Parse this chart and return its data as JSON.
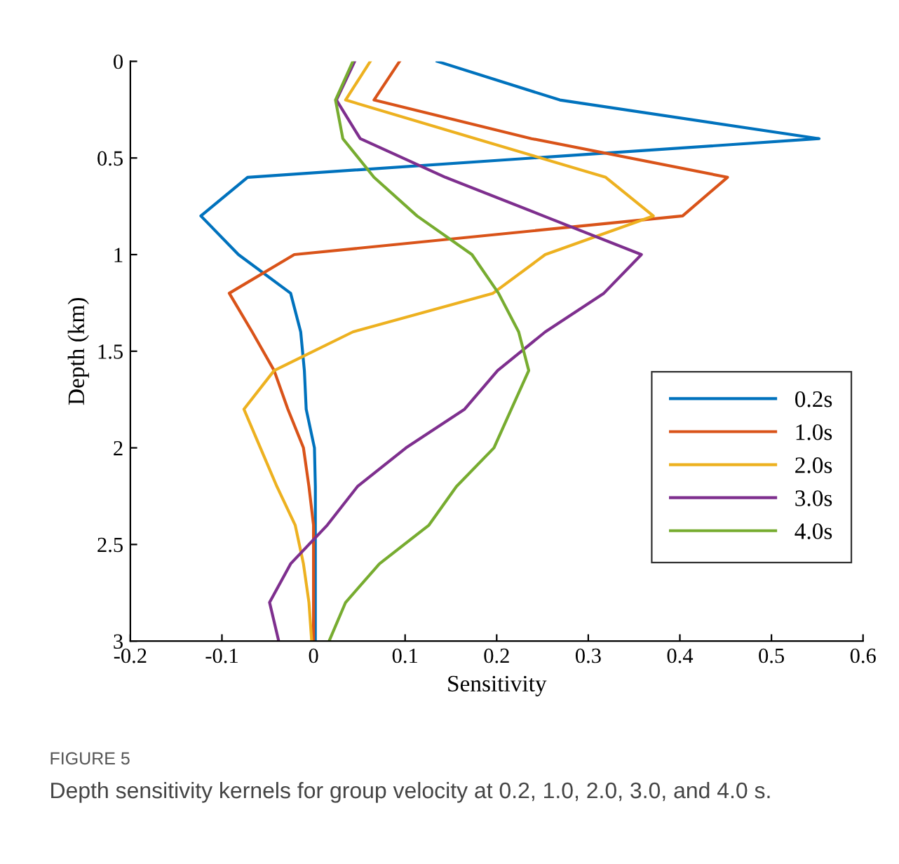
{
  "chart_data": {
    "type": "line",
    "orientation": "horizontal",
    "xlabel": "Sensitivity",
    "ylabel": "Depth (km)",
    "x": [
      0,
      0.2,
      0.4,
      0.6,
      0.8,
      1.0,
      1.2,
      1.4,
      1.6,
      1.8,
      2.0,
      2.2,
      2.4,
      2.6,
      2.8,
      3.0
    ],
    "series": [
      {
        "name": "0.2s",
        "color": "#0072bd",
        "values": [
          0.135,
          0.269,
          0.552,
          -0.072,
          -0.123,
          -0.082,
          -0.025,
          -0.014,
          -0.01,
          -0.008,
          0.001,
          0.002,
          0.002,
          0.002,
          0.002,
          0.002
        ]
      },
      {
        "name": "1.0s",
        "color": "#d95319",
        "values": [
          0.094,
          0.066,
          0.238,
          0.452,
          0.403,
          -0.021,
          -0.092,
          -0.067,
          -0.043,
          -0.028,
          -0.011,
          -0.005,
          0.0,
          0.0,
          0.0,
          0.0
        ]
      },
      {
        "name": "2.0s",
        "color": "#edb120",
        "values": [
          0.062,
          0.035,
          0.177,
          0.319,
          0.371,
          0.253,
          0.196,
          0.043,
          -0.043,
          -0.076,
          -0.058,
          -0.04,
          -0.02,
          -0.011,
          -0.005,
          -0.002
        ]
      },
      {
        "name": "3.0s",
        "color": "#7e2f8e",
        "values": [
          0.045,
          0.025,
          0.051,
          0.144,
          0.251,
          0.358,
          0.317,
          0.253,
          0.201,
          0.165,
          0.101,
          0.048,
          0.015,
          -0.025,
          -0.048,
          -0.038
        ]
      },
      {
        "name": "4.0s",
        "color": "#77ac30",
        "values": [
          0.043,
          0.024,
          0.032,
          0.066,
          0.113,
          0.173,
          0.202,
          0.224,
          0.235,
          0.216,
          0.197,
          0.156,
          0.126,
          0.072,
          0.035,
          0.017
        ]
      }
    ],
    "xlim": [
      -0.2,
      0.6
    ],
    "xticks": [
      -0.2,
      -0.1,
      0,
      0.1,
      0.2,
      0.3,
      0.4,
      0.5,
      0.6
    ],
    "ylim": [
      3,
      0
    ],
    "yticks": [
      0,
      0.5,
      1,
      1.5,
      2,
      2.5,
      3
    ],
    "legend": "right",
    "grid": false,
    "marker": "none",
    "line_style": "solid",
    "annotations": [
      "FIGURE 5",
      "Depth sensitivity kernels for group velocity at 0.2, 1.0, 2.0, 3.0, and 4.0 s."
    ]
  }
}
